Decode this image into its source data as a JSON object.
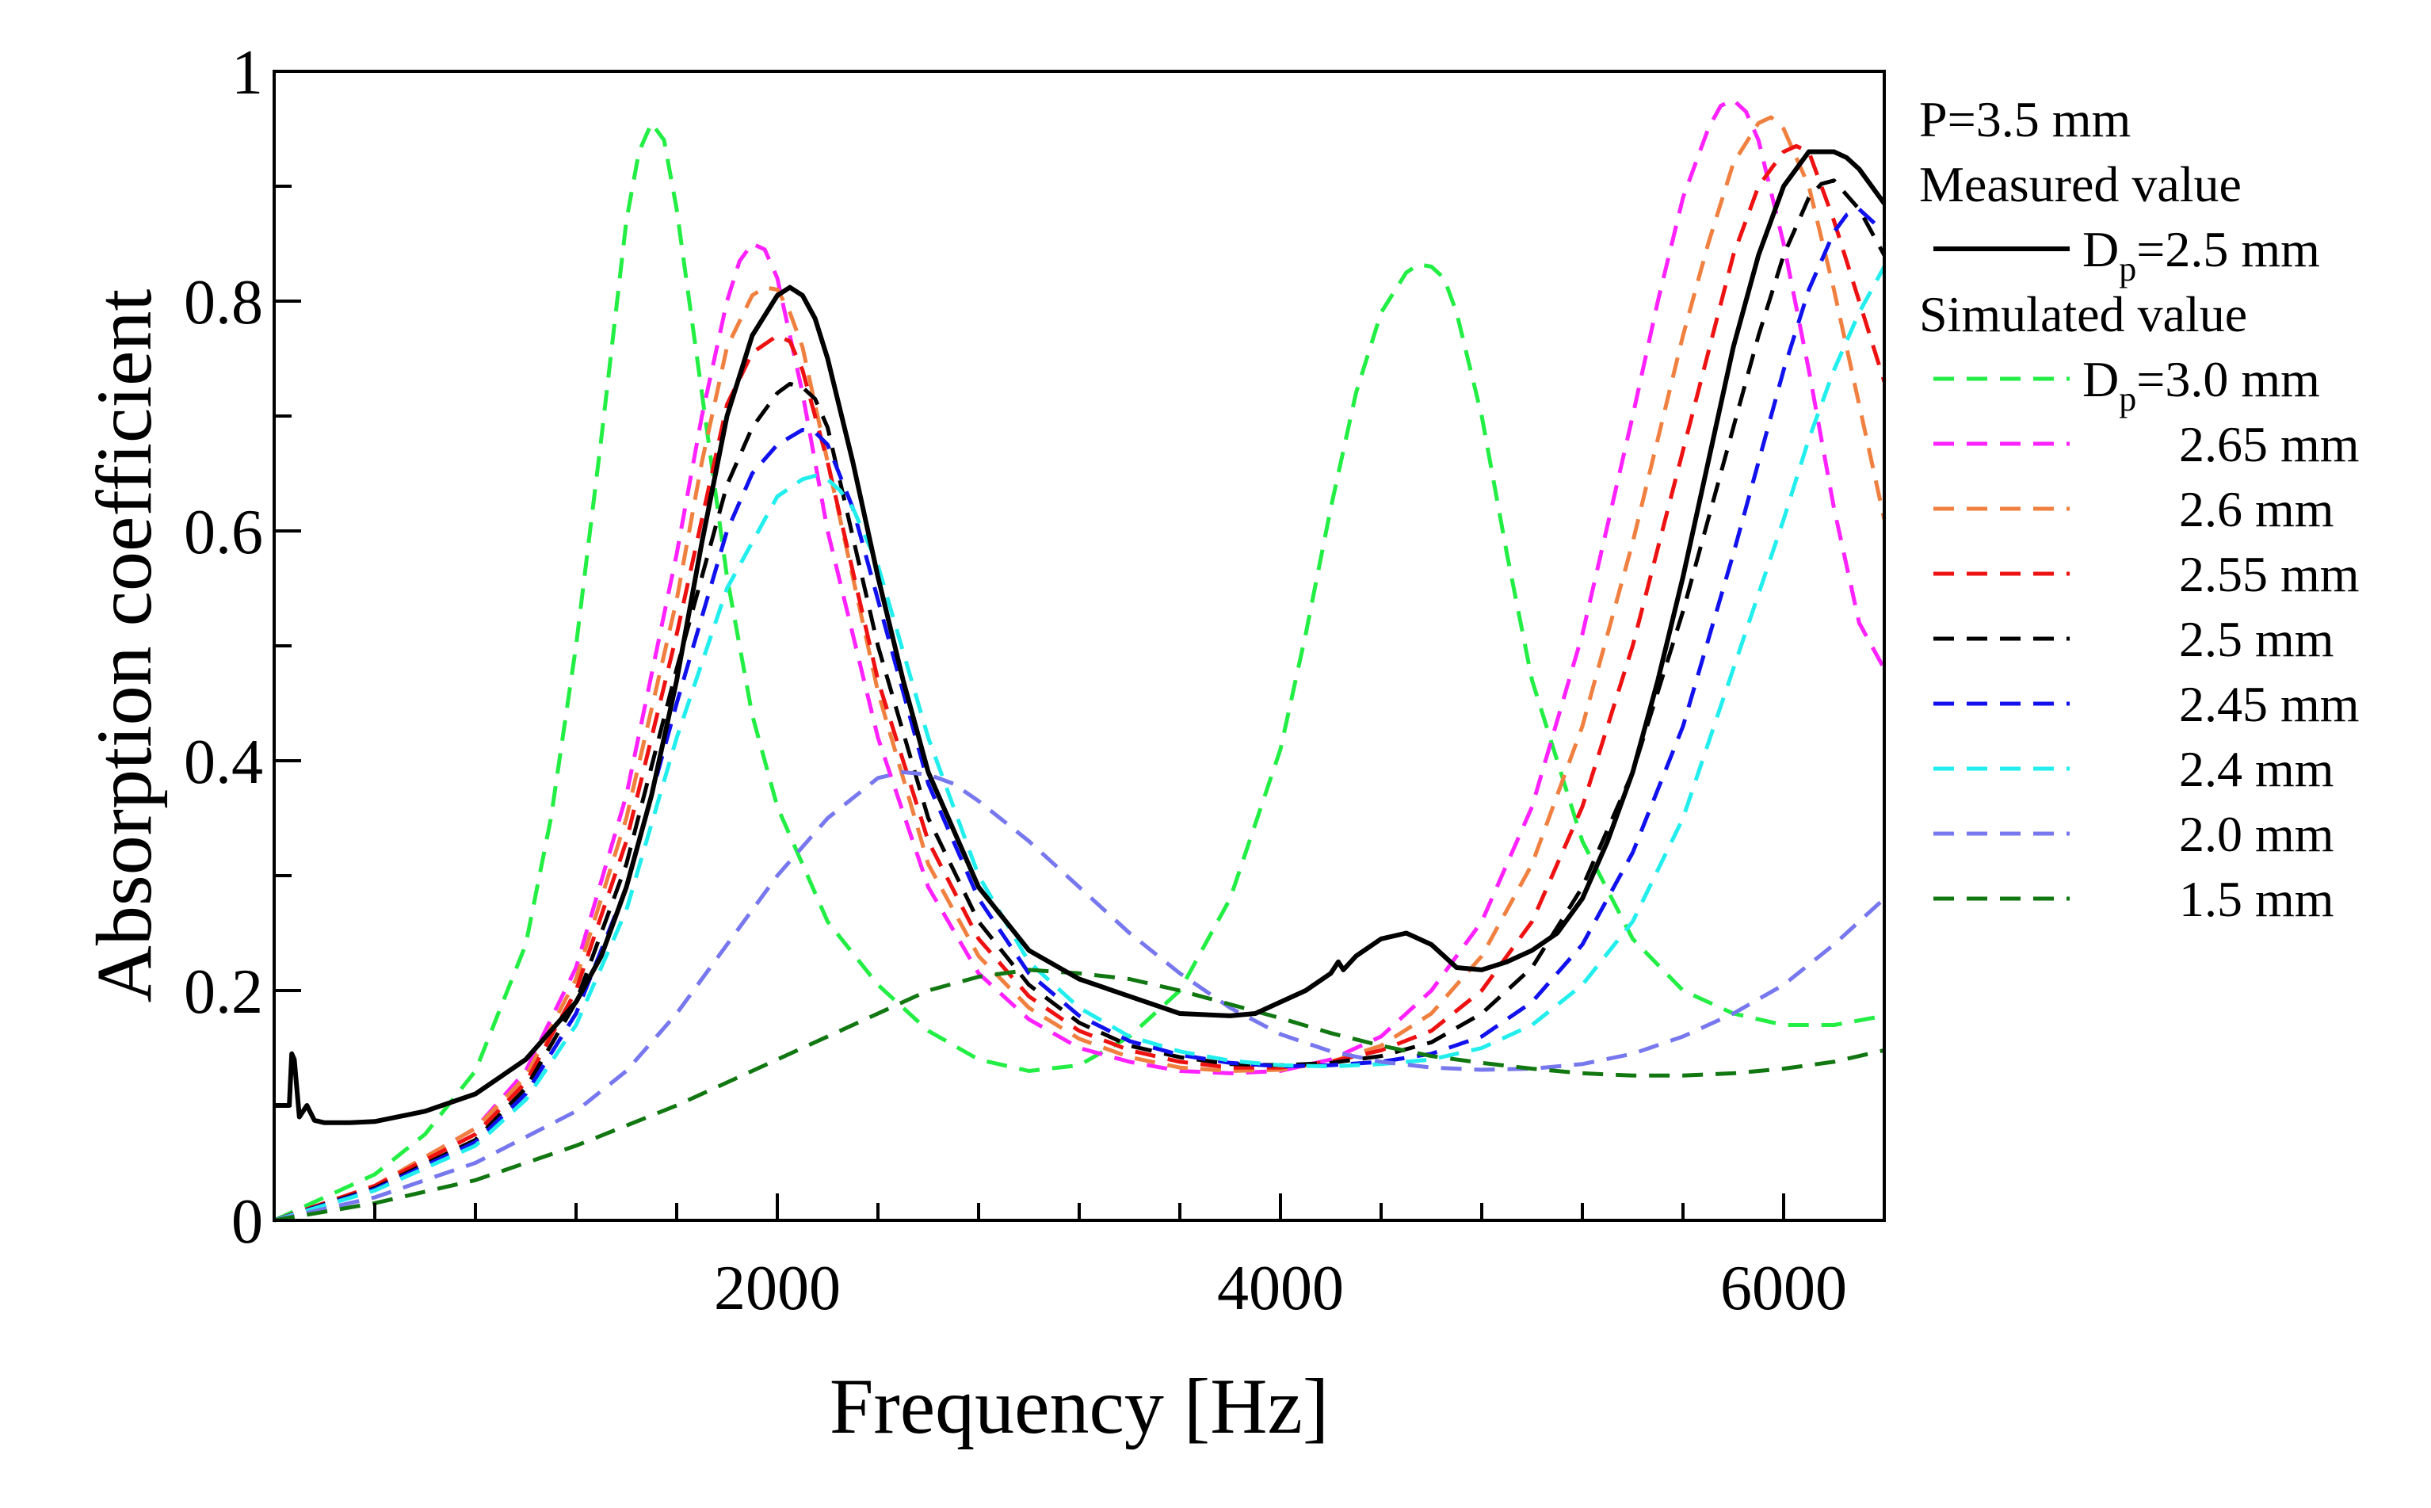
{
  "chart_data": {
    "type": "line",
    "title": "",
    "xlabel": "Frequency [Hz]",
    "ylabel": "Absorption coefficient",
    "xlim": [
      0,
      6400
    ],
    "ylim": [
      0,
      1
    ],
    "grid": false,
    "legend_position": "right",
    "x_ticks": [
      {
        "value": 2000,
        "label": "2000"
      },
      {
        "value": 4000,
        "label": "4000"
      },
      {
        "value": 6000,
        "label": "6000"
      }
    ],
    "y_ticks": [
      {
        "value": 0,
        "label": "0"
      },
      {
        "value": 0.2,
        "label": "0.2"
      },
      {
        "value": 0.4,
        "label": "0.4"
      },
      {
        "value": 0.6,
        "label": "0.6"
      },
      {
        "value": 0.8,
        "label": "0.8"
      },
      {
        "value": 1,
        "label": "1"
      }
    ],
    "x_minor_step": 400,
    "y_minor_step": 0.1,
    "legend": {
      "header": "P=3.5 mm",
      "measured_heading": "Measured value",
      "simulated_heading": "Simulated value"
    },
    "series": [
      {
        "name": "Dp=2.5 mm (measured)",
        "legend_prefix": "D",
        "legend_sub": "p",
        "legend_suffix": "=2.5 mm",
        "group": "measured",
        "color": "#000000",
        "dash": "solid",
        "x": [
          0,
          40,
          60,
          70,
          80,
          100,
          130,
          160,
          200,
          300,
          400,
          600,
          800,
          1000,
          1200,
          1250,
          1300,
          1400,
          1500,
          1600,
          1700,
          1800,
          1900,
          2000,
          2050,
          2100,
          2150,
          2200,
          2300,
          2400,
          2500,
          2600,
          2800,
          3000,
          3200,
          3400,
          3600,
          3800,
          3900,
          4000,
          4100,
          4200,
          4230,
          4250,
          4300,
          4400,
          4500,
          4600,
          4700,
          4800,
          4900,
          5000,
          5100,
          5200,
          5300,
          5400,
          5500,
          5600,
          5700,
          5800,
          5900,
          6000,
          6100,
          6200,
          6250,
          6300,
          6350,
          6400
        ],
        "y": [
          0.1,
          0.1,
          0.1,
          0.145,
          0.14,
          0.09,
          0.1,
          0.087,
          0.085,
          0.085,
          0.086,
          0.095,
          0.11,
          0.14,
          0.19,
          0.21,
          0.23,
          0.29,
          0.37,
          0.47,
          0.59,
          0.7,
          0.77,
          0.805,
          0.812,
          0.805,
          0.785,
          0.75,
          0.66,
          0.56,
          0.47,
          0.39,
          0.29,
          0.235,
          0.21,
          0.195,
          0.18,
          0.178,
          0.18,
          0.19,
          0.2,
          0.215,
          0.225,
          0.218,
          0.23,
          0.245,
          0.25,
          0.24,
          0.22,
          0.218,
          0.225,
          0.235,
          0.25,
          0.28,
          0.33,
          0.39,
          0.47,
          0.56,
          0.66,
          0.76,
          0.84,
          0.9,
          0.93,
          0.93,
          0.925,
          0.915,
          0.9,
          0.885
        ]
      },
      {
        "name": "Dp=3.0 mm",
        "legend_prefix": "D",
        "legend_sub": "p",
        "legend_suffix": "=3.0 mm",
        "group": "simulated",
        "color": "#22ee44",
        "dash": "dashed",
        "x": [
          0,
          200,
          400,
          600,
          800,
          1000,
          1100,
          1200,
          1300,
          1400,
          1450,
          1500,
          1550,
          1600,
          1700,
          1800,
          1900,
          2000,
          2200,
          2400,
          2600,
          2800,
          3000,
          3200,
          3400,
          3600,
          3800,
          4000,
          4100,
          4200,
          4300,
          4400,
          4500,
          4550,
          4600,
          4650,
          4700,
          4800,
          4900,
          5000,
          5200,
          5400,
          5600,
          5800,
          6000,
          6200,
          6400
        ],
        "y": [
          0.0,
          0.02,
          0.04,
          0.075,
          0.13,
          0.24,
          0.35,
          0.5,
          0.68,
          0.87,
          0.93,
          0.955,
          0.94,
          0.88,
          0.72,
          0.56,
          0.44,
          0.36,
          0.26,
          0.205,
          0.165,
          0.14,
          0.13,
          0.135,
          0.16,
          0.2,
          0.28,
          0.41,
          0.51,
          0.62,
          0.72,
          0.79,
          0.825,
          0.832,
          0.83,
          0.82,
          0.79,
          0.7,
          0.58,
          0.47,
          0.33,
          0.245,
          0.2,
          0.18,
          0.17,
          0.17,
          0.178
        ]
      },
      {
        "name": "2.65 mm",
        "legend_label": "2.65 mm",
        "group": "simulated",
        "color": "#ff22ff",
        "dash": "dashed",
        "x": [
          0,
          400,
          800,
          1000,
          1200,
          1400,
          1600,
          1700,
          1800,
          1850,
          1900,
          1950,
          2000,
          2100,
          2200,
          2400,
          2600,
          2800,
          3000,
          3200,
          3400,
          3600,
          3800,
          4000,
          4200,
          4400,
          4600,
          4800,
          5000,
          5200,
          5400,
          5500,
          5600,
          5700,
          5750,
          5800,
          5850,
          5900,
          6000,
          6100,
          6200,
          6300,
          6400
        ],
        "y": [
          0.0,
          0.03,
          0.08,
          0.13,
          0.22,
          0.37,
          0.58,
          0.7,
          0.8,
          0.835,
          0.85,
          0.845,
          0.82,
          0.72,
          0.6,
          0.42,
          0.29,
          0.215,
          0.175,
          0.15,
          0.138,
          0.13,
          0.128,
          0.13,
          0.14,
          0.16,
          0.2,
          0.26,
          0.36,
          0.51,
          0.7,
          0.8,
          0.89,
          0.95,
          0.97,
          0.975,
          0.965,
          0.94,
          0.85,
          0.74,
          0.62,
          0.52,
          0.48
        ]
      },
      {
        "name": "2.6 mm",
        "legend_label": "2.6 mm",
        "group": "simulated",
        "color": "#f08040",
        "dash": "dashed",
        "x": [
          0,
          400,
          800,
          1000,
          1200,
          1400,
          1600,
          1700,
          1800,
          1900,
          1950,
          2000,
          2050,
          2100,
          2200,
          2400,
          2600,
          2800,
          3000,
          3200,
          3400,
          3600,
          3800,
          4000,
          4200,
          4400,
          4600,
          4800,
          5000,
          5200,
          5400,
          5600,
          5700,
          5800,
          5900,
          5950,
          6000,
          6100,
          6200,
          6300,
          6400
        ],
        "y": [
          0.0,
          0.03,
          0.08,
          0.125,
          0.21,
          0.35,
          0.54,
          0.66,
          0.76,
          0.805,
          0.812,
          0.81,
          0.79,
          0.76,
          0.66,
          0.46,
          0.31,
          0.23,
          0.185,
          0.158,
          0.142,
          0.133,
          0.13,
          0.131,
          0.138,
          0.152,
          0.18,
          0.23,
          0.31,
          0.43,
          0.59,
          0.77,
          0.85,
          0.92,
          0.955,
          0.96,
          0.95,
          0.9,
          0.81,
          0.71,
          0.61
        ]
      },
      {
        "name": "2.55 mm",
        "legend_label": "2.55 mm",
        "group": "simulated",
        "color": "#ee1111",
        "dash": "dashed",
        "x": [
          0,
          400,
          800,
          1000,
          1200,
          1400,
          1600,
          1800,
          1900,
          2000,
          2050,
          2100,
          2200,
          2400,
          2600,
          2800,
          3000,
          3200,
          3400,
          3600,
          3800,
          4000,
          4200,
          4400,
          4600,
          4800,
          5000,
          5200,
          5400,
          5600,
          5800,
          5900,
          6000,
          6050,
          6100,
          6200,
          6300,
          6400
        ],
        "y": [
          0.0,
          0.03,
          0.075,
          0.12,
          0.2,
          0.33,
          0.51,
          0.71,
          0.755,
          0.77,
          0.765,
          0.74,
          0.66,
          0.47,
          0.33,
          0.245,
          0.195,
          0.165,
          0.148,
          0.138,
          0.133,
          0.133,
          0.138,
          0.148,
          0.165,
          0.2,
          0.26,
          0.36,
          0.5,
          0.67,
          0.84,
          0.9,
          0.93,
          0.935,
          0.93,
          0.87,
          0.8,
          0.73
        ]
      },
      {
        "name": "2.5 mm",
        "legend_label": "2.5 mm",
        "group": "simulated",
        "color": "#000000",
        "dash": "dashed",
        "x": [
          0,
          400,
          800,
          1000,
          1200,
          1400,
          1600,
          1800,
          1900,
          2000,
          2050,
          2100,
          2150,
          2200,
          2400,
          2600,
          2800,
          3000,
          3200,
          3400,
          3600,
          3800,
          4000,
          4200,
          4400,
          4600,
          4800,
          5000,
          5200,
          5400,
          5600,
          5800,
          5900,
          6000,
          6100,
          6150,
          6200,
          6300,
          6400
        ],
        "y": [
          0.0,
          0.028,
          0.07,
          0.115,
          0.19,
          0.31,
          0.48,
          0.64,
          0.69,
          0.72,
          0.728,
          0.725,
          0.715,
          0.69,
          0.5,
          0.35,
          0.26,
          0.205,
          0.172,
          0.152,
          0.142,
          0.136,
          0.135,
          0.137,
          0.143,
          0.155,
          0.18,
          0.22,
          0.29,
          0.39,
          0.53,
          0.69,
          0.77,
          0.84,
          0.89,
          0.902,
          0.905,
          0.88,
          0.84
        ]
      },
      {
        "name": "2.45 mm",
        "legend_label": "2.45 mm",
        "group": "simulated",
        "color": "#1111ee",
        "dash": "dashed",
        "x": [
          0,
          400,
          800,
          1000,
          1200,
          1400,
          1600,
          1800,
          1900,
          2000,
          2100,
          2150,
          2200,
          2300,
          2400,
          2600,
          2800,
          3000,
          3200,
          3400,
          3600,
          3800,
          4000,
          4200,
          4400,
          4600,
          4800,
          5000,
          5200,
          5400,
          5600,
          5800,
          5900,
          6000,
          6100,
          6200,
          6250,
          6300,
          6400
        ],
        "y": [
          0.0,
          0.027,
          0.068,
          0.11,
          0.18,
          0.29,
          0.45,
          0.6,
          0.65,
          0.675,
          0.688,
          0.686,
          0.675,
          0.62,
          0.54,
          0.38,
          0.28,
          0.215,
          0.178,
          0.156,
          0.144,
          0.137,
          0.134,
          0.135,
          0.138,
          0.145,
          0.16,
          0.19,
          0.24,
          0.32,
          0.43,
          0.58,
          0.66,
          0.74,
          0.81,
          0.86,
          0.875,
          0.88,
          0.86
        ]
      },
      {
        "name": "2.4 mm",
        "legend_label": "2.4 mm",
        "group": "simulated",
        "color": "#22eeee",
        "dash": "dashed",
        "x": [
          0,
          400,
          800,
          1000,
          1200,
          1400,
          1600,
          1800,
          2000,
          2100,
          2150,
          2200,
          2250,
          2300,
          2400,
          2600,
          2800,
          3000,
          3200,
          3400,
          3600,
          3800,
          4000,
          4200,
          4400,
          4600,
          4800,
          5000,
          5200,
          5400,
          5600,
          5800,
          6000,
          6100,
          6200,
          6300,
          6400
        ],
        "y": [
          0.0,
          0.026,
          0.065,
          0.105,
          0.17,
          0.27,
          0.42,
          0.55,
          0.63,
          0.645,
          0.648,
          0.645,
          0.635,
          0.62,
          0.57,
          0.42,
          0.3,
          0.225,
          0.185,
          0.16,
          0.147,
          0.139,
          0.135,
          0.134,
          0.136,
          0.14,
          0.15,
          0.17,
          0.205,
          0.26,
          0.35,
          0.48,
          0.61,
          0.68,
          0.74,
          0.79,
          0.83
        ]
      },
      {
        "name": "2.0 mm",
        "legend_label": "2.0 mm",
        "group": "simulated",
        "color": "#7777ee",
        "dash": "dashed",
        "x": [
          0,
          400,
          800,
          1200,
          1400,
          1600,
          1800,
          2000,
          2200,
          2400,
          2500,
          2600,
          2700,
          2800,
          3000,
          3200,
          3400,
          3600,
          3800,
          4000,
          4200,
          4400,
          4600,
          4800,
          5000,
          5200,
          5400,
          5600,
          5800,
          6000,
          6200,
          6400
        ],
        "y": [
          0.0,
          0.02,
          0.05,
          0.095,
          0.13,
          0.18,
          0.24,
          0.3,
          0.35,
          0.385,
          0.39,
          0.388,
          0.38,
          0.365,
          0.33,
          0.29,
          0.25,
          0.215,
          0.185,
          0.162,
          0.147,
          0.138,
          0.133,
          0.131,
          0.132,
          0.136,
          0.145,
          0.16,
          0.18,
          0.205,
          0.24,
          0.28
        ]
      },
      {
        "name": "1.5 mm",
        "legend_label": "1.5 mm",
        "group": "simulated",
        "color": "#117711",
        "dash": "dashed",
        "x": [
          0,
          400,
          800,
          1200,
          1600,
          2000,
          2400,
          2600,
          2800,
          3000,
          3200,
          3400,
          3600,
          3800,
          4000,
          4200,
          4400,
          4600,
          4800,
          5000,
          5200,
          5400,
          5600,
          5800,
          6000,
          6200,
          6400
        ],
        "y": [
          0.0,
          0.015,
          0.035,
          0.065,
          0.1,
          0.14,
          0.18,
          0.2,
          0.212,
          0.218,
          0.215,
          0.21,
          0.2,
          0.188,
          0.176,
          0.163,
          0.152,
          0.143,
          0.137,
          0.132,
          0.128,
          0.126,
          0.126,
          0.128,
          0.132,
          0.138,
          0.148
        ]
      }
    ]
  }
}
